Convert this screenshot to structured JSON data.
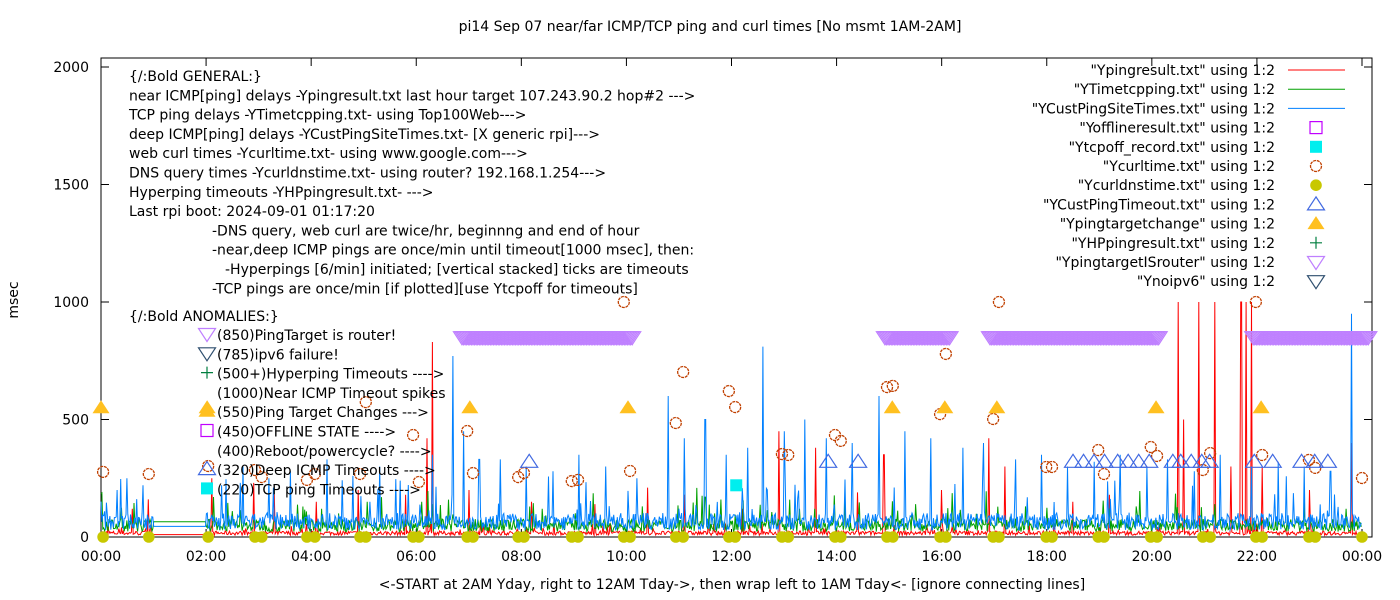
{
  "chart_data": {
    "type": "line",
    "title": "pi14 Sep 07  near/far ICMP/TCP ping and curl times [No msmt 1AM-2AM]",
    "xlabel": "<-START at 2AM Yday, right to 12AM Tday->, then wrap left to 1AM Tday<- [ignore connecting lines]",
    "ylabel": "msec",
    "xlim": [
      0,
      24
    ],
    "ylim": [
      0,
      2000
    ],
    "x_ticks": [
      0,
      2,
      4,
      6,
      8,
      10,
      12,
      14,
      16,
      18,
      20,
      22,
      24
    ],
    "x_tick_labels": [
      "00:00",
      "02:00",
      "04:00",
      "06:00",
      "08:00",
      "10:00",
      "12:00",
      "14:00",
      "16:00",
      "18:00",
      "20:00",
      "22:00",
      "00:00"
    ],
    "y_ticks": [
      0,
      500,
      1000,
      1500,
      2000
    ],
    "y_tick_labels": [
      "0",
      "500",
      "1000",
      "1500",
      "2000"
    ],
    "grid": false,
    "legend_position": "top-right",
    "annotations_general": [
      "{/:Bold GENERAL:}",
      "near ICMP[ping] delays -Ypingresult.txt last hour target 107.243.90.2 hop#2 --->",
      "TCP ping delays -YTimetcpping.txt- using Top100Web--->",
      "deep ICMP[ping] delays -YCustPingSiteTimes.txt- [X generic rpi]--->",
      "web curl times -Ycurltime.txt- using www.google.com--->",
      "DNS query times -Ycurldnstime.txt- using router? 192.168.1.254--->",
      "Hyperping timeouts -YHPpingresult.txt- --->",
      "Last rpi boot: 2024-09-01 01:17:20",
      "-DNS query, web curl are twice/hr, beginnng and end of hour",
      "-near,deep ICMP pings are once/min until timeout[1000 msec], then:",
      "-Hyperpings [6/min] initiated; [vertical stacked] ticks are timeouts",
      "-TCP pings are once/min [if plotted][use Ytcpoff for timeouts]"
    ],
    "annotations_anomalies_title": "{/:Bold ANOMALIES:}",
    "annotations_anomalies": [
      {
        "marker": "ptri-down-open",
        "color": "#bf80ff",
        "text": "(850)PingTarget is router!"
      },
      {
        "marker": "tri-down-open",
        "color": "#2f4f6f",
        "text": "(785)ipv6 failure!"
      },
      {
        "marker": "plus",
        "color": "#007f3f",
        "text": "(500+)Hyperping Timeouts ---->"
      },
      {
        "marker": "none",
        "color": "",
        "text": "(1000)Near ICMP Timeout spikes"
      },
      {
        "marker": "tri-up-filled",
        "color": "#ffc020",
        "text": "(550)Ping Target Changes --->"
      },
      {
        "marker": "square-open",
        "color": "#c000ff",
        "text": "(450)OFFLINE STATE ---->"
      },
      {
        "marker": "none",
        "color": "",
        "text": "(400)Reboot/powercycle? ---->"
      },
      {
        "marker": "tri-up-open",
        "color": "#4169e1",
        "text": "(320)Deep ICMP Timeouts ---->"
      },
      {
        "marker": "square-filled",
        "color": "#00eeee",
        "text": "(220)TCP ping Timeouts ---->"
      }
    ],
    "series": [
      {
        "name": "\"Ypingresult.txt\" using 1:2",
        "style": "line",
        "color": "#ff0000",
        "baseline": 15,
        "spikes": [
          [
            0.6,
            120
          ],
          [
            0.9,
            160
          ],
          [
            2.1,
            250
          ],
          [
            2.9,
            230
          ],
          [
            3.3,
            180
          ],
          [
            4.1,
            150
          ],
          [
            4.9,
            200
          ],
          [
            5.8,
            180
          ],
          [
            6.2,
            420
          ],
          [
            6.3,
            830
          ],
          [
            7.0,
            200
          ],
          [
            8.2,
            150
          ],
          [
            9.4,
            140
          ],
          [
            10.4,
            210
          ],
          [
            11.1,
            180
          ],
          [
            12.2,
            120
          ],
          [
            12.9,
            450
          ],
          [
            13.6,
            380
          ],
          [
            14.4,
            190
          ],
          [
            14.9,
            350
          ],
          [
            16.0,
            200
          ],
          [
            16.9,
            420
          ],
          [
            17.2,
            300
          ],
          [
            18.5,
            150
          ],
          [
            19.2,
            180
          ],
          [
            20.5,
            1000
          ],
          [
            20.6,
            500
          ],
          [
            20.9,
            1000
          ],
          [
            21.2,
            1000
          ],
          [
            21.5,
            300
          ],
          [
            21.7,
            1000
          ],
          [
            21.8,
            1000
          ],
          [
            21.9,
            1000
          ],
          [
            22.1,
            300
          ],
          [
            23.0,
            200
          ],
          [
            23.8,
            400
          ]
        ]
      },
      {
        "name": "\"YTimetcpping.txt\" using 1:2",
        "style": "line",
        "color": "#00a000",
        "baseline": 45,
        "spikes": [
          [
            0.1,
            65
          ],
          [
            1.0,
            65
          ],
          [
            1.9,
            65
          ],
          [
            2.5,
            110
          ],
          [
            4.2,
            120
          ],
          [
            6.1,
            150
          ],
          [
            8.4,
            120
          ],
          [
            10.3,
            130
          ],
          [
            11.5,
            170
          ],
          [
            13.3,
            120
          ],
          [
            15.5,
            140
          ],
          [
            17.6,
            130
          ],
          [
            19.7,
            130
          ],
          [
            21.2,
            140
          ],
          [
            22.9,
            150
          ],
          [
            23.7,
            120
          ]
        ]
      },
      {
        "name": "\"YCustPingSiteTimes.txt\" using 1:2",
        "style": "line",
        "color": "#0080ff",
        "baseline": 60,
        "spikes": [
          [
            0.3,
            200
          ],
          [
            0.5,
            250
          ],
          [
            0.8,
            220
          ],
          [
            2.3,
            220
          ],
          [
            2.7,
            300
          ],
          [
            3.2,
            250
          ],
          [
            3.6,
            280
          ],
          [
            4.3,
            330
          ],
          [
            4.8,
            260
          ],
          [
            5.3,
            300
          ],
          [
            5.7,
            240
          ],
          [
            6.3,
            350
          ],
          [
            6.7,
            770
          ],
          [
            6.9,
            450
          ],
          [
            7.2,
            330
          ],
          [
            7.6,
            330
          ],
          [
            8.1,
            300
          ],
          [
            8.6,
            280
          ],
          [
            9.1,
            350
          ],
          [
            9.6,
            300
          ],
          [
            10.2,
            250
          ],
          [
            10.8,
            600
          ],
          [
            11.1,
            420
          ],
          [
            11.5,
            500
          ],
          [
            11.9,
            350
          ],
          [
            12.3,
            380
          ],
          [
            12.6,
            810
          ],
          [
            13.0,
            450
          ],
          [
            13.4,
            500
          ],
          [
            13.8,
            420
          ],
          [
            14.3,
            400
          ],
          [
            14.8,
            600
          ],
          [
            15.3,
            450
          ],
          [
            15.8,
            420
          ],
          [
            16.4,
            380
          ],
          [
            16.8,
            400
          ],
          [
            17.4,
            330
          ],
          [
            17.9,
            350
          ],
          [
            18.4,
            300
          ],
          [
            18.9,
            320
          ],
          [
            19.4,
            350
          ],
          [
            19.9,
            300
          ],
          [
            20.3,
            330
          ],
          [
            20.8,
            280
          ],
          [
            21.3,
            350
          ],
          [
            21.9,
            300
          ],
          [
            22.4,
            320
          ],
          [
            22.9,
            300
          ],
          [
            23.4,
            280
          ],
          [
            23.8,
            950
          ]
        ]
      },
      {
        "name": "\"Yofflineresult.txt\" using 1:2",
        "style": "square-open",
        "color": "#c000ff",
        "points": []
      },
      {
        "name": "\"Ytcpoff_record.txt\" using 1:2",
        "style": "square-filled",
        "color": "#00eeee",
        "points": [
          [
            12.09,
            220
          ]
        ]
      },
      {
        "name": "\"Ycurltime.txt\" using 1:2",
        "style": "circle-open",
        "color": "#c04000",
        "points": [
          [
            0.04,
            277
          ],
          [
            0.91,
            268
          ],
          [
            2.04,
            302
          ],
          [
            2.93,
            285
          ],
          [
            3.06,
            255
          ],
          [
            3.92,
            243
          ],
          [
            4.07,
            268
          ],
          [
            4.93,
            268
          ],
          [
            5.04,
            574
          ],
          [
            5.94,
            434
          ],
          [
            6.05,
            234
          ],
          [
            6.97,
            451
          ],
          [
            7.08,
            272
          ],
          [
            7.94,
            255
          ],
          [
            8.05,
            272
          ],
          [
            8.96,
            238
          ],
          [
            9.08,
            243
          ],
          [
            9.95,
            1000
          ],
          [
            10.07,
            281
          ],
          [
            10.94,
            485
          ],
          [
            11.08,
            702
          ],
          [
            11.95,
            621
          ],
          [
            12.07,
            553
          ],
          [
            12.96,
            353
          ],
          [
            13.08,
            349
          ],
          [
            13.97,
            434
          ],
          [
            14.08,
            409
          ],
          [
            14.96,
            638
          ],
          [
            15.07,
            643
          ],
          [
            15.97,
            523
          ],
          [
            16.08,
            779
          ],
          [
            16.98,
            502
          ],
          [
            17.09,
            1000
          ],
          [
            17.99,
            298
          ],
          [
            18.1,
            298
          ],
          [
            18.98,
            370
          ],
          [
            19.09,
            268
          ],
          [
            19.98,
            383
          ],
          [
            20.1,
            345
          ],
          [
            20.97,
            285
          ],
          [
            21.11,
            357
          ],
          [
            21.98,
            1000
          ],
          [
            22.1,
            349
          ],
          [
            22.99,
            328
          ],
          [
            23.11,
            294
          ],
          [
            24.0,
            251
          ]
        ]
      },
      {
        "name": "\"Ycurldnstime.txt\" using 1:2",
        "style": "circle-filled",
        "color": "#c8c800",
        "points": [
          [
            0.04,
            0
          ],
          [
            0.91,
            0
          ],
          [
            2.04,
            0
          ],
          [
            2.93,
            0
          ],
          [
            3.06,
            0
          ],
          [
            3.92,
            0
          ],
          [
            4.07,
            0
          ],
          [
            4.93,
            0
          ],
          [
            5.04,
            0
          ],
          [
            5.94,
            0
          ],
          [
            6.05,
            0
          ],
          [
            6.97,
            0
          ],
          [
            7.08,
            0
          ],
          [
            7.94,
            0
          ],
          [
            8.05,
            0
          ],
          [
            8.96,
            0
          ],
          [
            9.08,
            0
          ],
          [
            9.95,
            0
          ],
          [
            10.07,
            0
          ],
          [
            10.94,
            0
          ],
          [
            11.08,
            0
          ],
          [
            11.95,
            0
          ],
          [
            12.07,
            0
          ],
          [
            12.96,
            0
          ],
          [
            13.08,
            0
          ],
          [
            13.97,
            0
          ],
          [
            14.08,
            0
          ],
          [
            14.96,
            0
          ],
          [
            15.07,
            0
          ],
          [
            15.97,
            0
          ],
          [
            16.08,
            0
          ],
          [
            16.98,
            0
          ],
          [
            17.09,
            0
          ],
          [
            17.99,
            0
          ],
          [
            18.1,
            0
          ],
          [
            18.98,
            0
          ],
          [
            19.09,
            0
          ],
          [
            19.98,
            0
          ],
          [
            20.1,
            0
          ],
          [
            20.97,
            0
          ],
          [
            21.11,
            0
          ],
          [
            21.98,
            0
          ],
          [
            22.1,
            0
          ],
          [
            22.99,
            0
          ],
          [
            23.11,
            0
          ],
          [
            24.0,
            0
          ]
        ]
      },
      {
        "name": "\"YCustPingTimeout.txt\" using 1:2",
        "style": "tri-up-open",
        "color": "#4169e1",
        "points": [
          [
            8.15,
            320
          ],
          [
            13.84,
            320
          ],
          [
            14.41,
            320
          ],
          [
            18.5,
            320
          ],
          [
            18.7,
            320
          ],
          [
            18.9,
            320
          ],
          [
            19.1,
            320
          ],
          [
            19.35,
            320
          ],
          [
            19.55,
            320
          ],
          [
            19.75,
            320
          ],
          [
            19.95,
            320
          ],
          [
            20.4,
            320
          ],
          [
            20.55,
            320
          ],
          [
            20.75,
            320
          ],
          [
            20.95,
            320
          ],
          [
            21.1,
            320
          ],
          [
            21.95,
            320
          ],
          [
            22.3,
            320
          ],
          [
            22.85,
            320
          ],
          [
            23.1,
            320
          ],
          [
            23.35,
            320
          ]
        ]
      },
      {
        "name": "\"Ypingtargetchange\" using 1:2",
        "style": "tri-up-filled",
        "color": "#ffc020",
        "points": [
          [
            0,
            550
          ],
          [
            2.02,
            550
          ],
          [
            7.02,
            550
          ],
          [
            10.03,
            550
          ],
          [
            15.06,
            550
          ],
          [
            16.06,
            550
          ],
          [
            17.05,
            550
          ],
          [
            20.08,
            550
          ],
          [
            22.08,
            550
          ]
        ]
      },
      {
        "name": "\"YHPpingresult.txt\" using 1:2",
        "style": "plus",
        "color": "#007f3f",
        "points": []
      },
      {
        "name": "\"YpingtargetISrouter\" using 1:2",
        "style": "ptri-down-open",
        "color": "#bf80ff",
        "ranges": [
          [
            6.87,
            10.13,
            850
          ],
          [
            14.92,
            16.16,
            850
          ],
          [
            16.92,
            20.16,
            850
          ],
          [
            21.93,
            24.2,
            850
          ]
        ]
      },
      {
        "name": "\"Ynoipv6\" using 1:2",
        "style": "tri-down-open",
        "color": "#2f4f6f",
        "points": []
      }
    ]
  }
}
